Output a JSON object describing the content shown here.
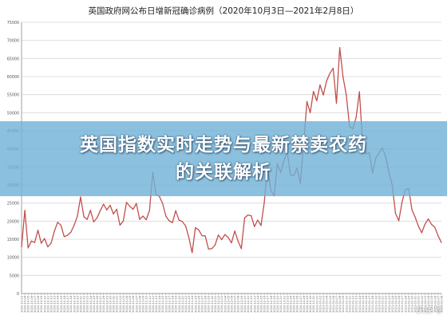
{
  "banner": {
    "line1": "英国指数实时走势与最新禁卖农药",
    "line2": "的关联解析"
  },
  "watermark": "头条号",
  "colors": {
    "line": "#c0504d",
    "grid": "#d9d9d9",
    "axis": "#888888",
    "banner": "#6eb2d6"
  },
  "chart_data": {
    "type": "line",
    "title": "英国政府网公布日增新冠确诊病例（2020年10月3日—2021年2月8日）",
    "xlabel": "",
    "ylabel": "",
    "ylim": [
      0,
      75000
    ],
    "yticks": [
      0,
      5000,
      10000,
      15000,
      20000,
      25000,
      30000,
      35000,
      40000,
      45000,
      50000,
      55000,
      60000,
      65000,
      70000,
      75000
    ],
    "grid": true,
    "legend": "none",
    "x": [
      "2020-10-03",
      "2020-10-04",
      "2020-10-05",
      "2020-10-06",
      "2020-10-07",
      "2020-10-08",
      "2020-10-09",
      "2020-10-10",
      "2020-10-11",
      "2020-10-12",
      "2020-10-13",
      "2020-10-14",
      "2020-10-15",
      "2020-10-16",
      "2020-10-17",
      "2020-10-18",
      "2020-10-19",
      "2020-10-20",
      "2020-10-21",
      "2020-10-22",
      "2020-10-23",
      "2020-10-24",
      "2020-10-25",
      "2020-10-26",
      "2020-10-27",
      "2020-10-28",
      "2020-10-29",
      "2020-10-30",
      "2020-10-31",
      "2020-11-01",
      "2020-11-02",
      "2020-11-03",
      "2020-11-04",
      "2020-11-05",
      "2020-11-06",
      "2020-11-07",
      "2020-11-08",
      "2020-11-09",
      "2020-11-10",
      "2020-11-11",
      "2020-11-12",
      "2020-11-13",
      "2020-11-14",
      "2020-11-15",
      "2020-11-16",
      "2020-11-17",
      "2020-11-18",
      "2020-11-19",
      "2020-11-20",
      "2020-11-21",
      "2020-11-22",
      "2020-11-23",
      "2020-11-24",
      "2020-11-25",
      "2020-11-26",
      "2020-11-27",
      "2020-11-28",
      "2020-11-29",
      "2020-11-30",
      "2020-12-01",
      "2020-12-02",
      "2020-12-03",
      "2020-12-04",
      "2020-12-05",
      "2020-12-06",
      "2020-12-07",
      "2020-12-08",
      "2020-12-09",
      "2020-12-10",
      "2020-12-11",
      "2020-12-12",
      "2020-12-13",
      "2020-12-14",
      "2020-12-15",
      "2020-12-16",
      "2020-12-17",
      "2020-12-18",
      "2020-12-19",
      "2020-12-20",
      "2020-12-21",
      "2020-12-22",
      "2020-12-23",
      "2020-12-24",
      "2020-12-25",
      "2020-12-26",
      "2020-12-27",
      "2020-12-28",
      "2020-12-29",
      "2020-12-30",
      "2020-12-31",
      "2021-01-01",
      "2021-01-02",
      "2021-01-03",
      "2021-01-04",
      "2021-01-05",
      "2021-01-06",
      "2021-01-07",
      "2021-01-08",
      "2021-01-09",
      "2021-01-10",
      "2021-01-11",
      "2021-01-12",
      "2021-01-13",
      "2021-01-14",
      "2021-01-15",
      "2021-01-16",
      "2021-01-17",
      "2021-01-18",
      "2021-01-19",
      "2021-01-20",
      "2021-01-21",
      "2021-01-22",
      "2021-01-23",
      "2021-01-24",
      "2021-01-25",
      "2021-01-26",
      "2021-01-27",
      "2021-01-28",
      "2021-01-29",
      "2021-01-30",
      "2021-01-31",
      "2021-02-01",
      "2021-02-02",
      "2021-02-03",
      "2021-02-04",
      "2021-02-05",
      "2021-02-06",
      "2021-02-07",
      "2021-02-08"
    ],
    "series": [
      {
        "values": [
          12900,
          23000,
          12600,
          14500,
          14100,
          17500,
          13900,
          15200,
          12900,
          13900,
          17200,
          19700,
          18900,
          15700,
          16100,
          16900,
          18800,
          21300,
          26700,
          21200,
          20500,
          23000,
          19800,
          20900,
          22900,
          24700,
          23100,
          24400,
          22000,
          23300,
          18900,
          20000,
          25200,
          24100,
          23300,
          24900,
          20500,
          21400,
          20400,
          22900,
          33500,
          27300,
          26900,
          24900,
          21400,
          20100,
          19600,
          22900,
          20300,
          19900,
          18700,
          15500,
          11300,
          18200,
          17600,
          16000,
          15900,
          12300,
          12400,
          13400,
          16200,
          14900,
          16300,
          15500,
          14000,
          17300,
          14500,
          12400,
          20900,
          21700,
          21500,
          18500,
          20300,
          18800,
          25200,
          35300,
          28500,
          27000,
          35900,
          33400,
          36800,
          39200,
          32700,
          32700,
          34700,
          30500,
          41400,
          53100,
          50000,
          55900,
          53300,
          57700,
          54900,
          58800,
          60900,
          62300,
          52600,
          68000,
          59900,
          54900,
          46200,
          45500,
          48700,
          55800,
          41300,
          38600,
          38900,
          33300,
          37500,
          38900,
          40300,
          37900,
          33500,
          30000,
          22200,
          20100,
          25300,
          28700,
          29100,
          23200,
          21100,
          18600,
          16800,
          19200,
          20600,
          19100,
          18300,
          15900,
          14100
        ]
      }
    ]
  }
}
